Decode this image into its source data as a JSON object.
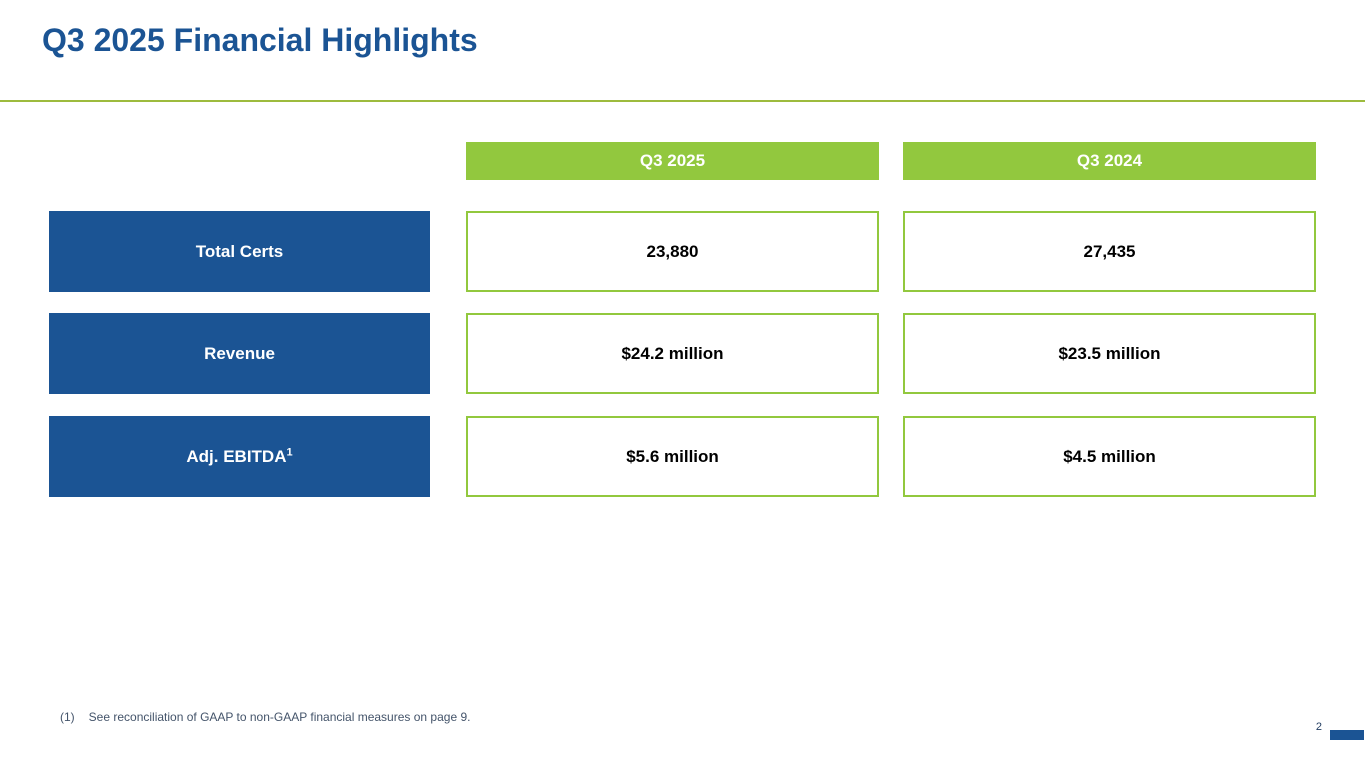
{
  "slide": {
    "title": "Q3 2025 Financial Highlights",
    "page_number": "2",
    "footnote": {
      "marker": "(1)",
      "text": "See reconciliation of GAAP to non-GAAP financial measures on page 9."
    }
  },
  "table": {
    "column_headers": [
      "Q3 2025",
      "Q3 2024"
    ],
    "rows": [
      {
        "label": "Total Certs",
        "footnote_sup": "",
        "values": [
          "23,880",
          "27,435"
        ]
      },
      {
        "label": "Revenue",
        "footnote_sup": "",
        "values": [
          "$24.2 million",
          "$23.5 million"
        ]
      },
      {
        "label": "Adj. EBITDA",
        "footnote_sup": "1",
        "values": [
          "$5.6 million",
          "$4.5 million"
        ]
      }
    ]
  },
  "colors": {
    "accent_blue": "#1B5494",
    "accent_green": "#92C83E",
    "divider_green": "#9DBB3E"
  }
}
